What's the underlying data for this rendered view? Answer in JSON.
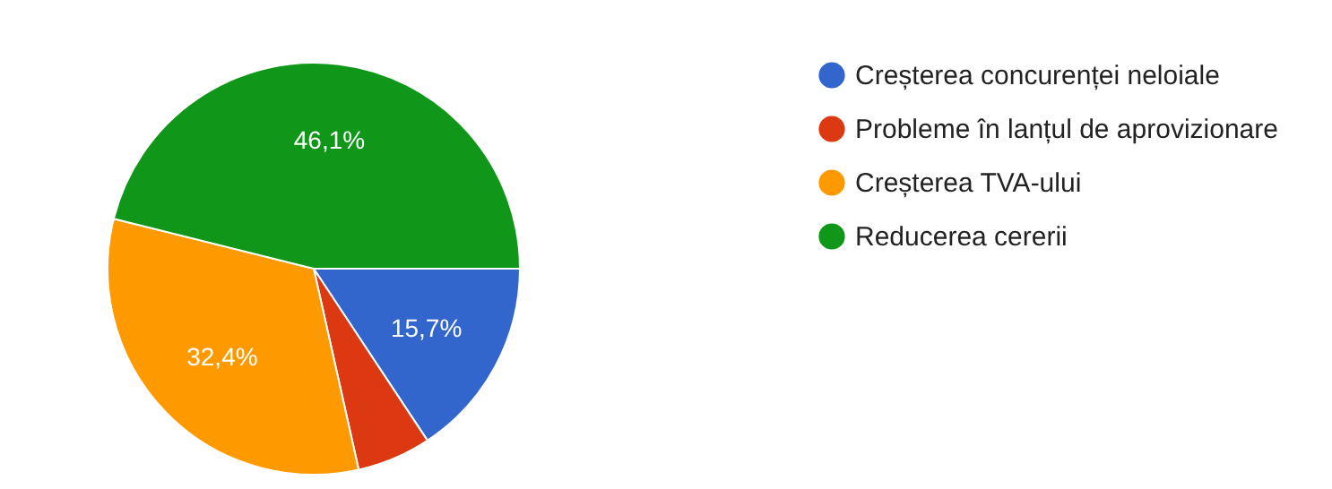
{
  "chart_data": {
    "type": "pie",
    "categories": [
      "Creșterea concurenței neloiale",
      "Probleme în lanțul de aprovizionare",
      "Creșterea TVA-ului",
      "Reducerea cererii"
    ],
    "values": [
      15.7,
      5.8,
      32.4,
      46.1
    ],
    "colors": [
      "#3366cc",
      "#dc3912",
      "#ff9900",
      "#109618"
    ],
    "value_labels": [
      "15,7%",
      null,
      "32,4%",
      "46,1%"
    ],
    "legend": "right"
  }
}
